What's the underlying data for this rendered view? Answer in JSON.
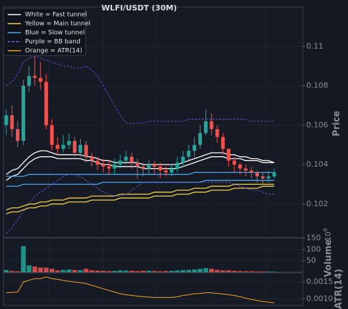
{
  "chart_data": {
    "type": "candlestick",
    "title": "WLFI/USDT (30M)",
    "ylabel": "Price",
    "ylim": [
      0.1003,
      0.112
    ],
    "yticks": [
      0.102,
      0.104,
      0.106,
      0.108,
      0.11
    ],
    "grid": true,
    "legend": "upper left",
    "up_color": "#26a69a",
    "down_color": "#ef5350",
    "open": [
      0.106,
      0.1065,
      0.1058,
      0.1052,
      0.108,
      0.1085,
      0.1084,
      0.1082,
      0.106,
      0.105,
      0.1048,
      0.105,
      0.1052,
      0.1046,
      0.105,
      0.1044,
      0.1042,
      0.104,
      0.1039,
      0.1038,
      0.104,
      0.1042,
      0.1044,
      0.1041,
      0.1039,
      0.1038,
      0.104,
      0.1039,
      0.1037,
      0.1036,
      0.1038,
      0.1041,
      0.1044,
      0.1047,
      0.105,
      0.1056,
      0.1062,
      0.1058,
      0.1054,
      0.1048,
      0.1042,
      0.104,
      0.1038,
      0.1037,
      0.1036,
      0.1034,
      0.1033,
      0.1034
    ],
    "high": [
      0.1068,
      0.107,
      0.1062,
      0.1083,
      0.109,
      0.1095,
      0.1092,
      0.1086,
      0.1063,
      0.1054,
      0.1055,
      0.1056,
      0.1054,
      0.1053,
      0.1052,
      0.1046,
      0.1044,
      0.1043,
      0.1042,
      0.1043,
      0.1045,
      0.1047,
      0.1046,
      0.1043,
      0.1041,
      0.1042,
      0.1042,
      0.1041,
      0.1039,
      0.104,
      0.1044,
      0.1047,
      0.105,
      0.1054,
      0.106,
      0.1068,
      0.1066,
      0.106,
      0.1056,
      0.1048,
      0.1044,
      0.1041,
      0.104,
      0.1039,
      0.1037,
      0.1036,
      0.1037,
      0.1038
    ],
    "low": [
      0.1055,
      0.1054,
      0.1049,
      0.105,
      0.1077,
      0.108,
      0.1078,
      0.1058,
      0.1047,
      0.1045,
      0.1046,
      0.1048,
      0.1044,
      0.1044,
      0.1041,
      0.1039,
      0.1037,
      0.1036,
      0.1035,
      0.1035,
      0.1038,
      0.104,
      0.1038,
      0.1033,
      0.1034,
      0.1035,
      0.1035,
      0.1033,
      0.1034,
      0.1034,
      0.1036,
      0.1039,
      0.1042,
      0.1044,
      0.1048,
      0.1055,
      0.1055,
      0.1051,
      0.1045,
      0.1039,
      0.1036,
      0.1035,
      0.1034,
      0.1033,
      0.1031,
      0.103,
      0.1031,
      0.1033
    ],
    "close": [
      0.1065,
      0.1058,
      0.1052,
      0.108,
      0.1085,
      0.1084,
      0.1082,
      0.106,
      0.105,
      0.1048,
      0.105,
      0.1052,
      0.1046,
      0.105,
      0.1044,
      0.1042,
      0.104,
      0.1039,
      0.1038,
      0.104,
      0.1042,
      0.1044,
      0.1041,
      0.1039,
      0.1038,
      0.104,
      0.1039,
      0.1037,
      0.1036,
      0.1038,
      0.1041,
      0.1044,
      0.1047,
      0.105,
      0.1056,
      0.1062,
      0.1058,
      0.1054,
      0.1048,
      0.1042,
      0.104,
      0.1038,
      0.1037,
      0.1036,
      0.1034,
      0.1033,
      0.1034,
      0.1036
    ],
    "lines": [
      {
        "name": "White = Fast tunnel",
        "color": "#ffffff",
        "style": "solid",
        "upper": [
          0.1035,
          0.1037,
          0.1038,
          0.1041,
          0.1044,
          0.1046,
          0.1047,
          0.1047,
          0.1046,
          0.1045,
          0.1045,
          0.1045,
          0.1045,
          0.1045,
          0.1044,
          0.1044,
          0.1043,
          0.1042,
          0.1042,
          0.1041,
          0.1041,
          0.1041,
          0.1041,
          0.1041,
          0.104,
          0.104,
          0.104,
          0.104,
          0.104,
          0.104,
          0.104,
          0.1041,
          0.1042,
          0.1043,
          0.1044,
          0.1045,
          0.1046,
          0.1046,
          0.1046,
          0.1045,
          0.1045,
          0.1044,
          0.1044,
          0.1043,
          0.1043,
          0.1042,
          0.1042,
          0.1041
        ],
        "lower": [
          0.1032,
          0.1034,
          0.1035,
          0.1038,
          0.1041,
          0.1043,
          0.1044,
          0.1044,
          0.1044,
          0.1043,
          0.1043,
          0.1043,
          0.1043,
          0.1043,
          0.1042,
          0.1042,
          0.1041,
          0.104,
          0.104,
          0.1039,
          0.1039,
          0.1039,
          0.1039,
          0.1039,
          0.1038,
          0.1038,
          0.1038,
          0.1038,
          0.1038,
          0.1038,
          0.1038,
          0.1039,
          0.104,
          0.1041,
          0.1042,
          0.1043,
          0.1044,
          0.1044,
          0.1044,
          0.1043,
          0.1043,
          0.1043,
          0.1042,
          0.1042,
          0.1042,
          0.1041,
          0.1041,
          0.1041
        ]
      },
      {
        "name": "Yellow = Main tunnel",
        "color": "#f5d142",
        "style": "solid",
        "upper": [
          0.1017,
          0.1018,
          0.1018,
          0.1019,
          0.102,
          0.102,
          0.1021,
          0.1021,
          0.1022,
          0.1022,
          0.1022,
          0.1023,
          0.1023,
          0.1023,
          0.1023,
          0.1024,
          0.1024,
          0.1024,
          0.1024,
          0.1024,
          0.1025,
          0.1025,
          0.1025,
          0.1025,
          0.1025,
          0.1025,
          0.1026,
          0.1026,
          0.1026,
          0.1026,
          0.1027,
          0.1027,
          0.1027,
          0.1028,
          0.1028,
          0.1028,
          0.1029,
          0.1029,
          0.1029,
          0.1029,
          0.103,
          0.103,
          0.103,
          0.103,
          0.103,
          0.103,
          0.103,
          0.103
        ],
        "lower": [
          0.1015,
          0.1016,
          0.1016,
          0.1017,
          0.1018,
          0.1018,
          0.1019,
          0.1019,
          0.102,
          0.102,
          0.102,
          0.1021,
          0.1021,
          0.1021,
          0.1021,
          0.1022,
          0.1022,
          0.1022,
          0.1022,
          0.1022,
          0.1023,
          0.1023,
          0.1023,
          0.1023,
          0.1023,
          0.1023,
          0.1024,
          0.1024,
          0.1024,
          0.1024,
          0.1025,
          0.1025,
          0.1025,
          0.1026,
          0.1026,
          0.1026,
          0.1027,
          0.1027,
          0.1027,
          0.1027,
          0.1028,
          0.1028,
          0.1028,
          0.1028,
          0.1028,
          0.1029,
          0.1029,
          0.1029
        ]
      },
      {
        "name": "Blue = Slow tunnel",
        "color": "#4aa8f0",
        "style": "solid",
        "upper": [
          0.1034,
          0.1034,
          0.1034,
          0.1034,
          0.1035,
          0.1035,
          0.1035,
          0.1035,
          0.1035,
          0.1035,
          0.1035,
          0.1035,
          0.1035,
          0.1035,
          0.1035,
          0.1035,
          0.1035,
          0.1035,
          0.1035,
          0.1035,
          0.1035,
          0.1035,
          0.1035,
          0.1035,
          0.1035,
          0.1035,
          0.1035,
          0.1035,
          0.1035,
          0.1035,
          0.1035,
          0.1035,
          0.1035,
          0.1036,
          0.1036,
          0.1036,
          0.1036,
          0.1036,
          0.1036,
          0.1036,
          0.1036,
          0.1036,
          0.1036,
          0.1036,
          0.1036,
          0.1036,
          0.1036,
          0.1036
        ],
        "lower": [
          0.1029,
          0.1029,
          0.1029,
          0.103,
          0.103,
          0.103,
          0.103,
          0.103,
          0.103,
          0.103,
          0.103,
          0.103,
          0.103,
          0.103,
          0.103,
          0.103,
          0.103,
          0.1031,
          0.1031,
          0.1031,
          0.1031,
          0.1031,
          0.1031,
          0.1031,
          0.1031,
          0.1031,
          0.1031,
          0.1031,
          0.1031,
          0.1031,
          0.1031,
          0.1031,
          0.1031,
          0.1031,
          0.1031,
          0.1032,
          0.1032,
          0.1032,
          0.1032,
          0.1032,
          0.1032,
          0.1032,
          0.1032,
          0.1032,
          0.1032,
          0.1032,
          0.1032,
          0.1032
        ]
      },
      {
        "name": "Purple = BB band",
        "color": "#7b5cf0",
        "style": "dashed",
        "upper": [
          0.108,
          0.1082,
          0.1086,
          0.1092,
          0.1094,
          0.1095,
          0.1094,
          0.1093,
          0.1092,
          0.1091,
          0.109,
          0.109,
          0.1089,
          0.1089,
          0.109,
          0.1088,
          0.1085,
          0.108,
          0.1075,
          0.107,
          0.1065,
          0.1061,
          0.1061,
          0.1061,
          0.1061,
          0.1062,
          0.1062,
          0.1062,
          0.1062,
          0.1062,
          0.1062,
          0.1062,
          0.1063,
          0.1063,
          0.1063,
          0.1063,
          0.1063,
          0.1063,
          0.1063,
          0.1063,
          0.1063,
          0.1063,
          0.1063,
          0.1062,
          0.1062,
          0.1062,
          0.1062,
          0.1062
        ],
        "lower": [
          0.1005,
          0.1008,
          0.1012,
          0.1016,
          0.102,
          0.1024,
          0.1026,
          0.1028,
          0.103,
          0.1032,
          0.1034,
          0.1035,
          0.1035,
          0.1034,
          0.1032,
          0.103,
          0.1028,
          0.1026,
          0.1025,
          0.1024,
          0.1024,
          0.1025,
          0.1027,
          0.1029,
          0.1031,
          0.1031,
          0.1031,
          0.1031,
          0.1031,
          0.1031,
          0.1031,
          0.1031,
          0.1031,
          0.1031,
          0.1031,
          0.1031,
          0.1031,
          0.1031,
          0.1031,
          0.1031,
          0.103,
          0.1029,
          0.1028,
          0.1027,
          0.1027,
          0.1026,
          0.1025,
          0.1025
        ]
      }
    ],
    "volume": {
      "label": "Volume",
      "offset_base": "10",
      "offset_exponent": "6",
      "ylim": [
        0,
        150
      ],
      "yticks": [
        50,
        100,
        150
      ],
      "values": [
        10,
        5,
        4,
        115,
        30,
        25,
        20,
        20,
        15,
        8,
        10,
        12,
        10,
        9,
        15,
        8,
        7,
        6,
        5,
        6,
        8,
        7,
        6,
        5,
        6,
        7,
        5,
        4,
        5,
        6,
        8,
        9,
        10,
        12,
        15,
        18,
        15,
        10,
        8,
        8,
        6,
        5,
        4,
        4,
        3,
        3,
        3,
        2
      ]
    },
    "atr": {
      "name": "Orange = ATR(14)",
      "label": "ATR(14)",
      "color": "#f5a623",
      "ylim": [
        0.0008,
        0.00177
      ],
      "yticks": [
        {
          "value": 0.001,
          "label": "0.0010"
        },
        {
          "value": 0.0015,
          "label": "0.0015"
        }
      ],
      "values": [
        0.00118,
        0.00119,
        0.0012,
        0.0015,
        0.00155,
        0.0016,
        0.0016,
        0.00165,
        0.0016,
        0.00158,
        0.00155,
        0.00152,
        0.0015,
        0.00148,
        0.00145,
        0.0014,
        0.00135,
        0.0013,
        0.00125,
        0.0012,
        0.00115,
        0.00112,
        0.0011,
        0.00108,
        0.00106,
        0.00105,
        0.00104,
        0.00104,
        0.00104,
        0.00104,
        0.00106,
        0.0011,
        0.00112,
        0.00115,
        0.00116,
        0.00118,
        0.00118,
        0.00116,
        0.00114,
        0.00112,
        0.0011,
        0.00106,
        0.00102,
        0.00098,
        0.00095,
        0.00092,
        0.0009,
        0.00088
      ]
    }
  }
}
